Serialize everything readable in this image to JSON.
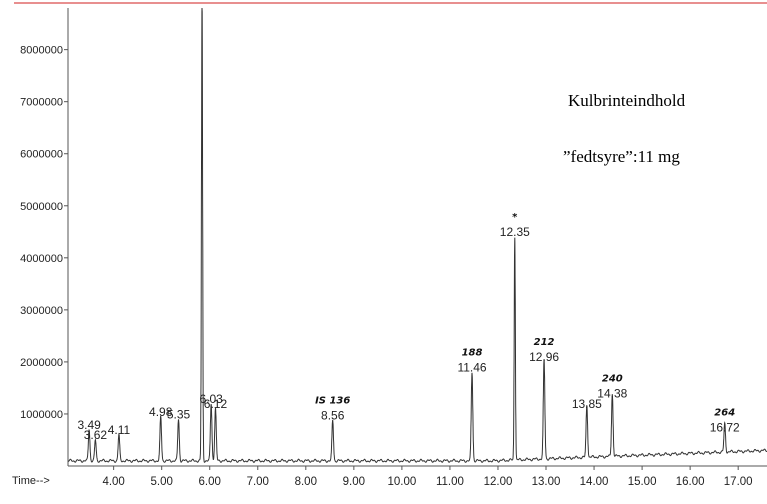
{
  "chart_data": {
    "type": "line",
    "x_axis_prefix": "Time-->",
    "x_ticks": [
      "4.00",
      "5.00",
      "6.00",
      "7.00",
      "8.00",
      "9.00",
      "10.00",
      "11.00",
      "12.00",
      "13.00",
      "14.00",
      "15.00",
      "16.00",
      "17.00"
    ],
    "y_ticks": [
      "1000000",
      "2000000",
      "3000000",
      "4000000",
      "5000000",
      "6000000",
      "7000000",
      "8000000"
    ],
    "xlim": [
      3.05,
      17.6
    ],
    "ylim": [
      0,
      8800000
    ],
    "baseline": 100000,
    "peaks": [
      {
        "x": 3.49,
        "label": "3.49",
        "height": 600000
      },
      {
        "x": 3.62,
        "label": "3.62",
        "height": 400000
      },
      {
        "x": 4.11,
        "label": "4.11",
        "height": 500000
      },
      {
        "x": 4.98,
        "label": "4.98",
        "height": 850000
      },
      {
        "x": 5.35,
        "label": "5.35",
        "height": 800000
      },
      {
        "x": 5.84,
        "label": "",
        "height": 8800000
      },
      {
        "x": 6.03,
        "label": "6.03",
        "height": 1100000
      },
      {
        "x": 6.12,
        "label": "6.12",
        "height": 1000000
      },
      {
        "x": 8.56,
        "label": "8.56",
        "height": 780000
      },
      {
        "x": 11.46,
        "label": "11.46",
        "height": 1700000
      },
      {
        "x": 12.35,
        "label": "12.35",
        "height": 4300000
      },
      {
        "x": 12.96,
        "label": "12.96",
        "height": 1900000
      },
      {
        "x": 13.85,
        "label": "13.85",
        "height": 1000000
      },
      {
        "x": 14.38,
        "label": "14.38",
        "height": 1200000
      },
      {
        "x": 16.72,
        "label": "16.72",
        "height": 550000
      }
    ],
    "annotations": [
      {
        "x": 8.56,
        "text": "IS 136"
      },
      {
        "x": 11.46,
        "text": "188"
      },
      {
        "x": 12.35,
        "text": "*"
      },
      {
        "x": 12.96,
        "text": "212"
      },
      {
        "x": 14.38,
        "text": "240"
      },
      {
        "x": 16.72,
        "text": "264"
      }
    ]
  },
  "overlay_text": {
    "line1": "Kulbrinteindhold",
    "line2": "”fedtsyre”:11 mg"
  },
  "colors": {
    "signal": "#333333",
    "axis": "#555555",
    "top_border": "#e06a6a"
  }
}
